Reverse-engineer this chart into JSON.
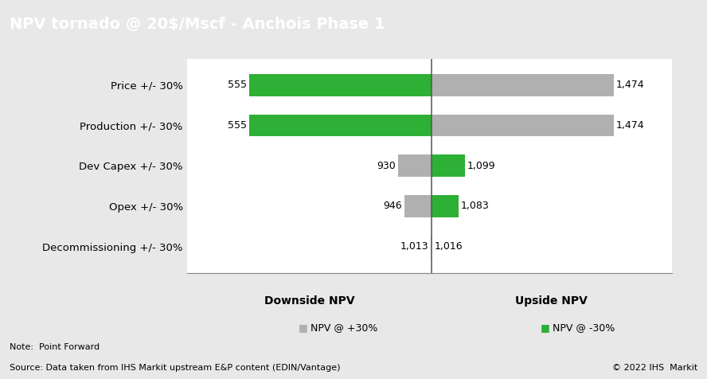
{
  "title": "NPV tornado @ 20$/Mscf - Anchois Phase 1",
  "title_bg_color": "#7f7f7f",
  "title_text_color": "#ffffff",
  "categories": [
    "Price +/- 30%",
    "Production +/- 30%",
    "Dev Capex +/- 30%",
    "Opex +/- 30%",
    "Decommissioning +/- 30%"
  ],
  "base_case": 1014.5,
  "downside_values": [
    555,
    555,
    930,
    946,
    1013
  ],
  "upside_values": [
    1474,
    1474,
    1099,
    1083,
    1016
  ],
  "downside_labels": [
    "555",
    "555",
    "930",
    "946",
    "1,013"
  ],
  "upside_labels": [
    "1,474",
    "1,474",
    "1,099",
    "1,083",
    "1,016"
  ],
  "left_colors": [
    "#2db035",
    "#2db035",
    "#b0b0b0",
    "#b0b0b0",
    "#b0b0b0"
  ],
  "right_colors": [
    "#b0b0b0",
    "#b0b0b0",
    "#2db035",
    "#2db035",
    "#2db035"
  ],
  "green_color": "#2db035",
  "gray_color": "#b0b0b0",
  "bar_height": 0.55,
  "xlim": [
    400,
    1620
  ],
  "legend_gray_label": "NPV @ +30%",
  "legend_green_label": "NPV @ -30%",
  "xlabel_left": "Downside NPV",
  "xlabel_right": "Upside NPV",
  "note_text": "Note:  Point Forward",
  "source_text": "Source: Data taken from IHS Markit upstream E&P content (EDIN/Vantage)",
  "copyright_text": "© 2022 IHS  Markit",
  "fig_bg_color": "#e8e8e8",
  "plot_bg_color": "#ffffff"
}
